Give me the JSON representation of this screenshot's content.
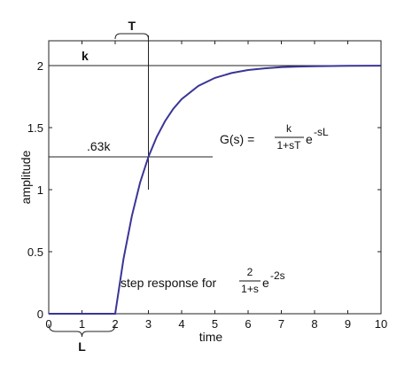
{
  "chart_data": {
    "type": "line",
    "xlabel": "time",
    "ylabel": "amplitude",
    "xlim": [
      0,
      10
    ],
    "ylim": [
      0,
      2.2
    ],
    "x_ticks": [
      "0",
      "1",
      "2",
      "3",
      "4",
      "5",
      "6",
      "7",
      "8",
      "9",
      "10"
    ],
    "y_ticks": [
      "0",
      "0.5",
      "1",
      "1.5",
      "2"
    ],
    "series": [
      {
        "x": [
          0,
          1,
          2,
          2.25,
          2.5,
          2.75,
          3,
          3.25,
          3.5,
          3.75,
          4,
          4.5,
          5,
          5.5,
          6,
          6.5,
          7,
          7.5,
          8,
          9,
          10
        ],
        "y": [
          0,
          0,
          0,
          0.442,
          0.787,
          1.057,
          1.264,
          1.426,
          1.553,
          1.652,
          1.729,
          1.836,
          1.901,
          1.94,
          1.964,
          1.978,
          1.987,
          1.992,
          1.995,
          1.998,
          1.999
        ],
        "color": "#3a3596"
      }
    ],
    "annotations": {
      "k_label": "k",
      "k_value": 2,
      "t_label": "T",
      "l_label": "L",
      "pt63_label": ".63k",
      "pt63_value": 1.264,
      "t_x": 3,
      "formula_lhs": "G(s) = ",
      "formula_num": "k",
      "formula_den": "1+sT",
      "formula_exp_base": "e",
      "formula_exp": "-sL",
      "step_text": "step response for ",
      "step_num": "2",
      "step_den": "1+s",
      "step_exp_base": "e",
      "step_exp": "-2s"
    }
  }
}
